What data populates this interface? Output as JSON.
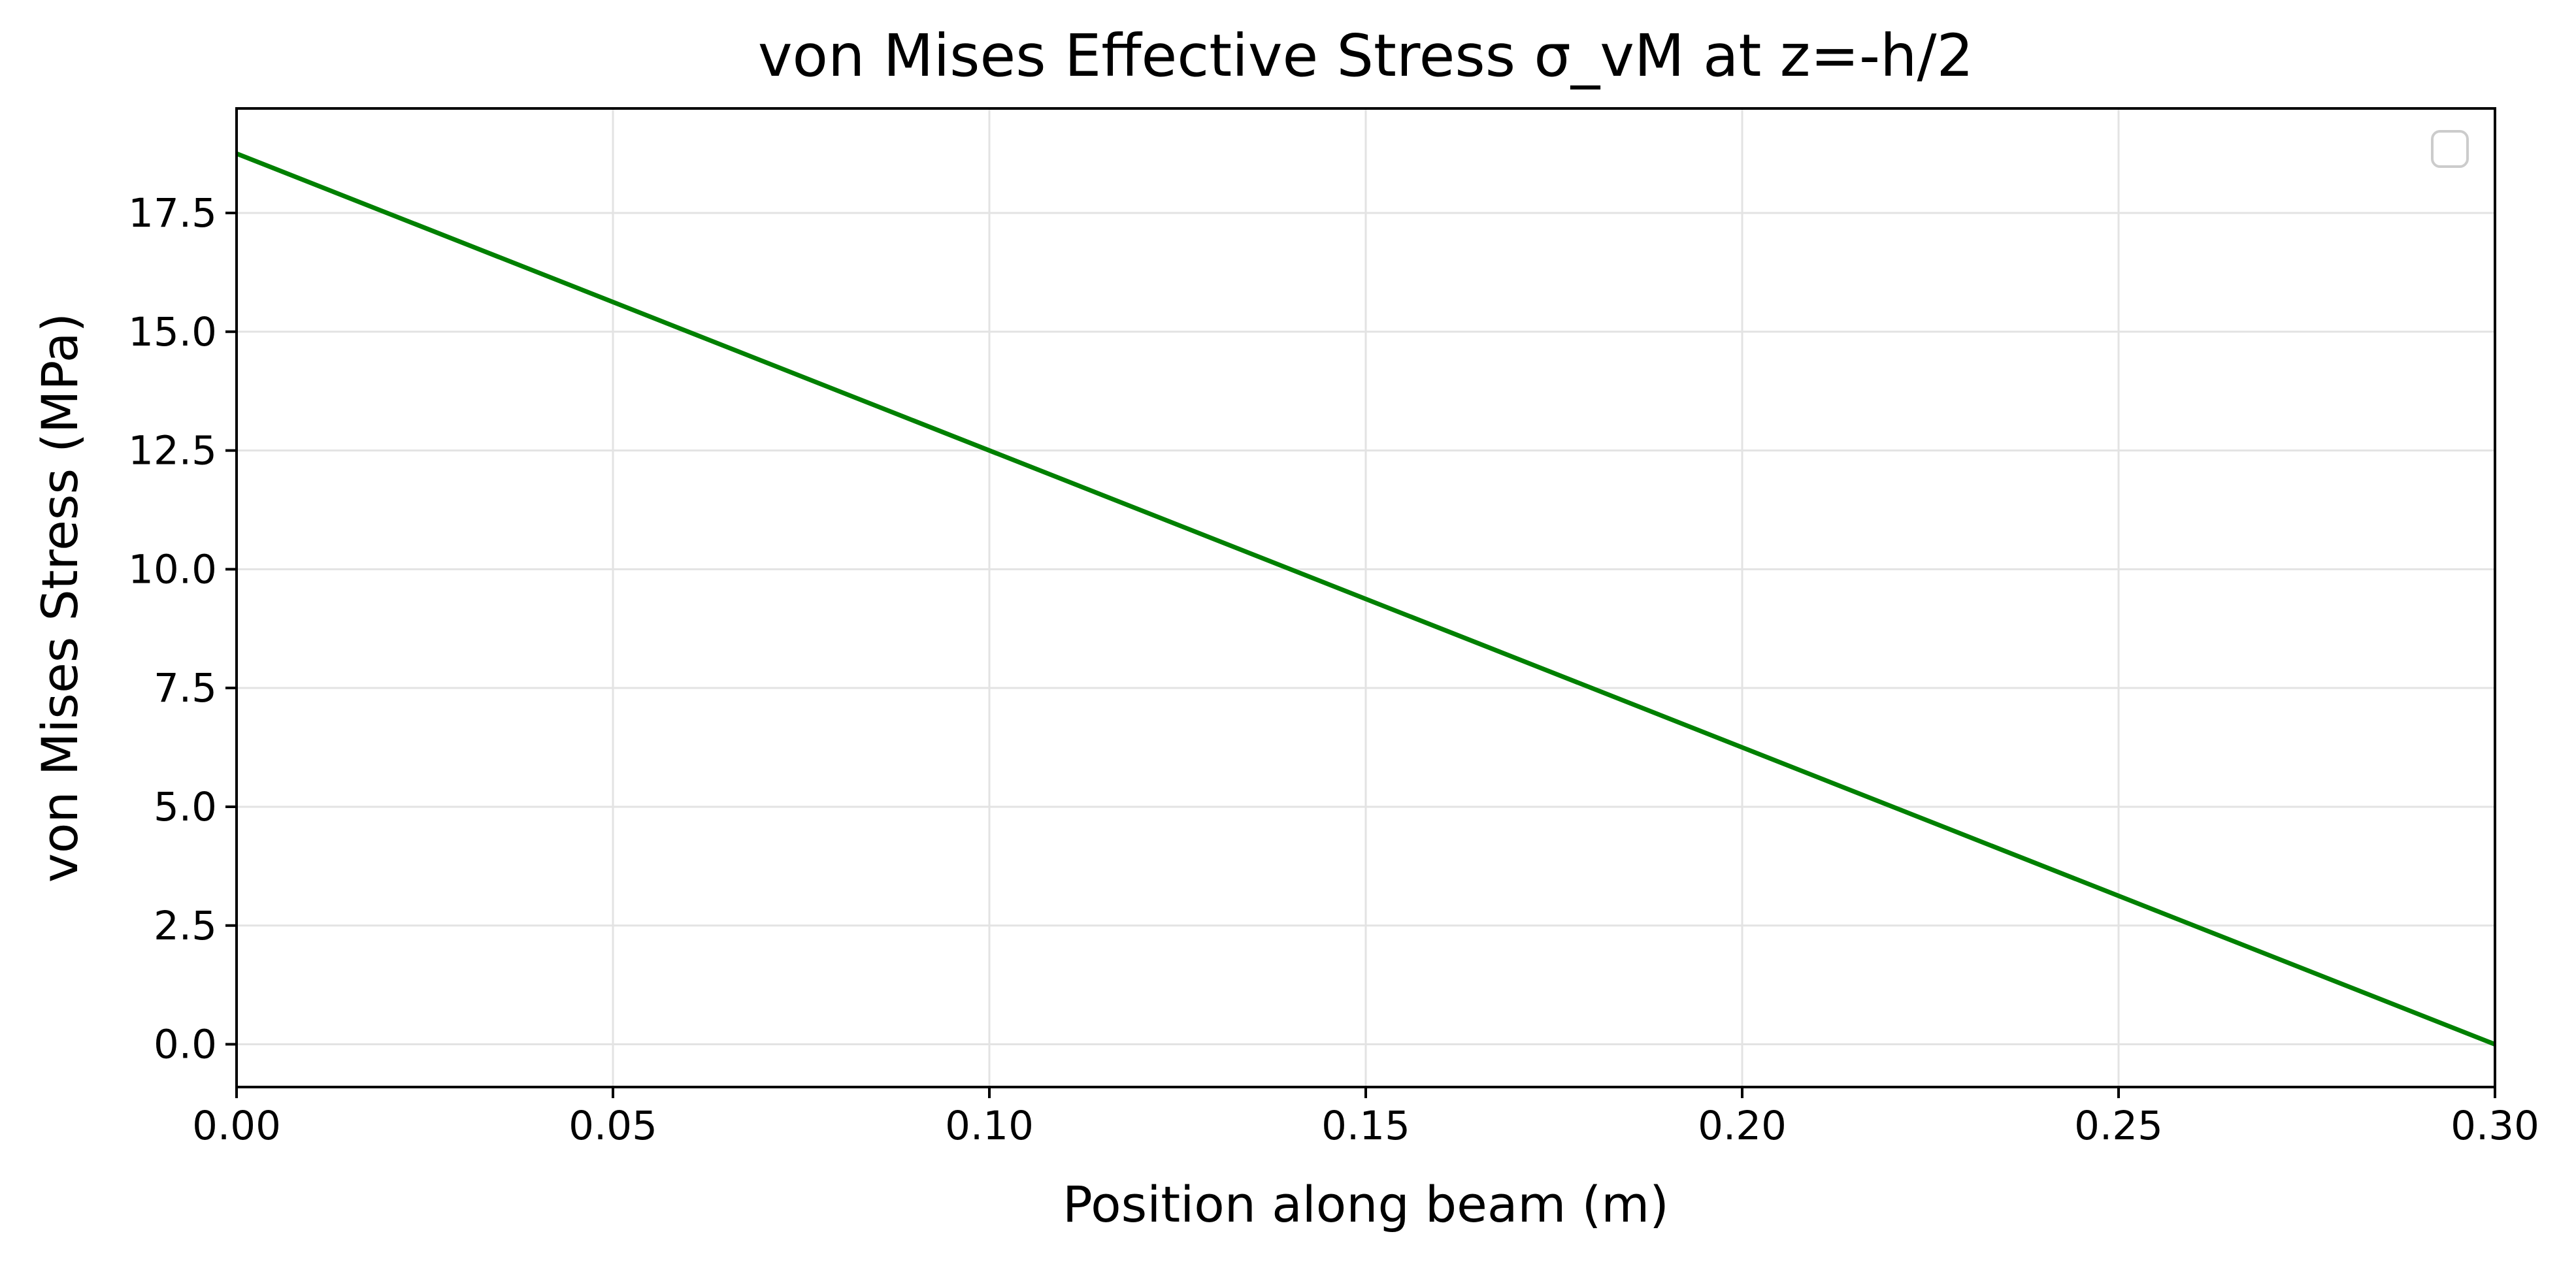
{
  "chart_data": {
    "type": "line",
    "title": "von Mises Effective Stress σ_vM at z=-h/2",
    "xlabel": "Position along beam (m)",
    "ylabel": "von Mises Stress (MPa)",
    "xlim": [
      0.0,
      0.3
    ],
    "ylim": [
      -0.9,
      19.7
    ],
    "x_ticks": [
      {
        "value": 0.0,
        "label": "0.00"
      },
      {
        "value": 0.05,
        "label": "0.05"
      },
      {
        "value": 0.1,
        "label": "0.10"
      },
      {
        "value": 0.15,
        "label": "0.15"
      },
      {
        "value": 0.2,
        "label": "0.20"
      },
      {
        "value": 0.25,
        "label": "0.25"
      },
      {
        "value": 0.3,
        "label": "0.30"
      }
    ],
    "y_ticks": [
      {
        "value": 0.0,
        "label": "0.0"
      },
      {
        "value": 2.5,
        "label": "2.5"
      },
      {
        "value": 5.0,
        "label": "5.0"
      },
      {
        "value": 7.5,
        "label": "7.5"
      },
      {
        "value": 10.0,
        "label": "10.0"
      },
      {
        "value": 12.5,
        "label": "12.5"
      },
      {
        "value": 15.0,
        "label": "15.0"
      },
      {
        "value": 17.5,
        "label": "17.5"
      }
    ],
    "grid": true,
    "legend": {
      "placement": "upper right",
      "entries": []
    },
    "series": [
      {
        "color": "#008000",
        "x": [
          0.0,
          0.3
        ],
        "y": [
          18.75,
          0.0
        ]
      }
    ]
  },
  "colors": {
    "line": "#008000",
    "grid": "#e3e3e3",
    "axes": "#000000"
  }
}
